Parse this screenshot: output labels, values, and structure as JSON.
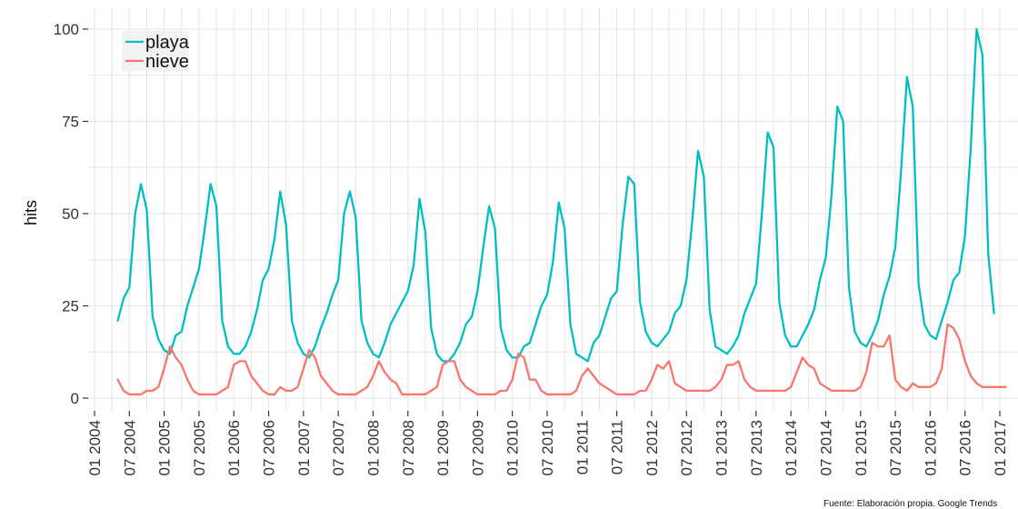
{
  "chart_data": {
    "type": "line",
    "title": "",
    "xlabel": "",
    "ylabel": "hits",
    "ylim": [
      0,
      100
    ],
    "xlim": [
      "2004-01",
      "2017-01"
    ],
    "y_ticks": [
      0,
      25,
      50,
      75,
      100
    ],
    "x_ticks": [
      {
        "date": "2004-01",
        "label": "01 2004"
      },
      {
        "date": "2004-07",
        "label": "07 2004"
      },
      {
        "date": "2005-01",
        "label": "01 2005"
      },
      {
        "date": "2005-07",
        "label": "07 2005"
      },
      {
        "date": "2006-01",
        "label": "01 2006"
      },
      {
        "date": "2006-07",
        "label": "07 2006"
      },
      {
        "date": "2007-01",
        "label": "01 2007"
      },
      {
        "date": "2007-07",
        "label": "07 2007"
      },
      {
        "date": "2008-01",
        "label": "01 2008"
      },
      {
        "date": "2008-07",
        "label": "07 2008"
      },
      {
        "date": "2009-01",
        "label": "01 2009"
      },
      {
        "date": "2009-07",
        "label": "07 2009"
      },
      {
        "date": "2010-01",
        "label": "01 2010"
      },
      {
        "date": "2010-07",
        "label": "07 2010"
      },
      {
        "date": "2011-01",
        "label": "01 2011"
      },
      {
        "date": "2011-07",
        "label": "07 2011"
      },
      {
        "date": "2012-01",
        "label": "01 2012"
      },
      {
        "date": "2012-07",
        "label": "07 2012"
      },
      {
        "date": "2013-01",
        "label": "01 2013"
      },
      {
        "date": "2013-07",
        "label": "07 2013"
      },
      {
        "date": "2014-01",
        "label": "01 2014"
      },
      {
        "date": "2014-07",
        "label": "07 2014"
      },
      {
        "date": "2015-01",
        "label": "01 2015"
      },
      {
        "date": "2015-07",
        "label": "07 2015"
      },
      {
        "date": "2016-01",
        "label": "01 2016"
      },
      {
        "date": "2016-07",
        "label": "07 2016"
      },
      {
        "date": "2017-01",
        "label": "01 2017"
      }
    ],
    "grid": true,
    "legend": {
      "position": "top-left"
    },
    "caption": "Fuente: Elaboración propia. Google Trends",
    "start": "2004-05",
    "series": [
      {
        "name": "playa",
        "color": "#00BFC4",
        "values": [
          21,
          27,
          30,
          50,
          58,
          51,
          22,
          16,
          13,
          12,
          17,
          18,
          25,
          30,
          35,
          46,
          58,
          52,
          21,
          14,
          12,
          12,
          14,
          18,
          24,
          32,
          35,
          43,
          56,
          47,
          21,
          15,
          12,
          11,
          14,
          19,
          23,
          28,
          32,
          50,
          56,
          49,
          21,
          15,
          12,
          11,
          15,
          20,
          23,
          26,
          29,
          36,
          54,
          45,
          19,
          12,
          10,
          10,
          12,
          15,
          20,
          22,
          29,
          41,
          52,
          46,
          19,
          13,
          11,
          11,
          14,
          15,
          20,
          25,
          28,
          37,
          53,
          46,
          20,
          12,
          11,
          10,
          15,
          17,
          22,
          27,
          29,
          47,
          60,
          58,
          26,
          18,
          15,
          14,
          16,
          18,
          23,
          25,
          32,
          48,
          67,
          60,
          24,
          14,
          13,
          12,
          14,
          17,
          23,
          27,
          31,
          50,
          72,
          68,
          26,
          17,
          14,
          14,
          17,
          20,
          24,
          32,
          38,
          55,
          79,
          75,
          30,
          18,
          15,
          14,
          17,
          21,
          28,
          33,
          41,
          62,
          87,
          79,
          31,
          20,
          17,
          16,
          21,
          26,
          32,
          34,
          44,
          68,
          100,
          93,
          39,
          23
        ]
      },
      {
        "name": "nieve",
        "color": "#F8766D",
        "values": [
          5,
          2,
          1,
          1,
          1,
          2,
          2,
          3,
          8,
          14,
          11,
          9,
          5,
          2,
          1,
          1,
          1,
          1,
          2,
          3,
          9,
          10,
          10,
          6,
          4,
          2,
          1,
          1,
          3,
          2,
          2,
          3,
          8,
          13,
          11,
          6,
          4,
          2,
          1,
          1,
          1,
          1,
          2,
          3,
          6,
          10,
          7,
          5,
          4,
          1,
          1,
          1,
          1,
          1,
          2,
          3,
          9,
          10,
          10,
          5,
          3,
          2,
          1,
          1,
          1,
          1,
          2,
          2,
          5,
          12,
          11,
          5,
          5,
          2,
          1,
          1,
          1,
          1,
          1,
          2,
          6,
          8,
          6,
          4,
          3,
          2,
          1,
          1,
          1,
          1,
          2,
          2,
          5,
          9,
          8,
          10,
          4,
          3,
          2,
          2,
          2,
          2,
          2,
          3,
          5,
          9,
          9,
          10,
          5,
          3,
          2,
          2,
          2,
          2,
          2,
          2,
          3,
          7,
          11,
          9,
          8,
          4,
          3,
          2,
          2,
          2,
          2,
          2,
          3,
          7,
          15,
          14,
          14,
          17,
          5,
          3,
          2,
          4,
          3,
          3,
          3,
          4,
          8,
          20,
          19,
          16,
          10,
          6,
          4,
          3,
          3,
          3,
          3,
          3
        ]
      }
    ]
  }
}
